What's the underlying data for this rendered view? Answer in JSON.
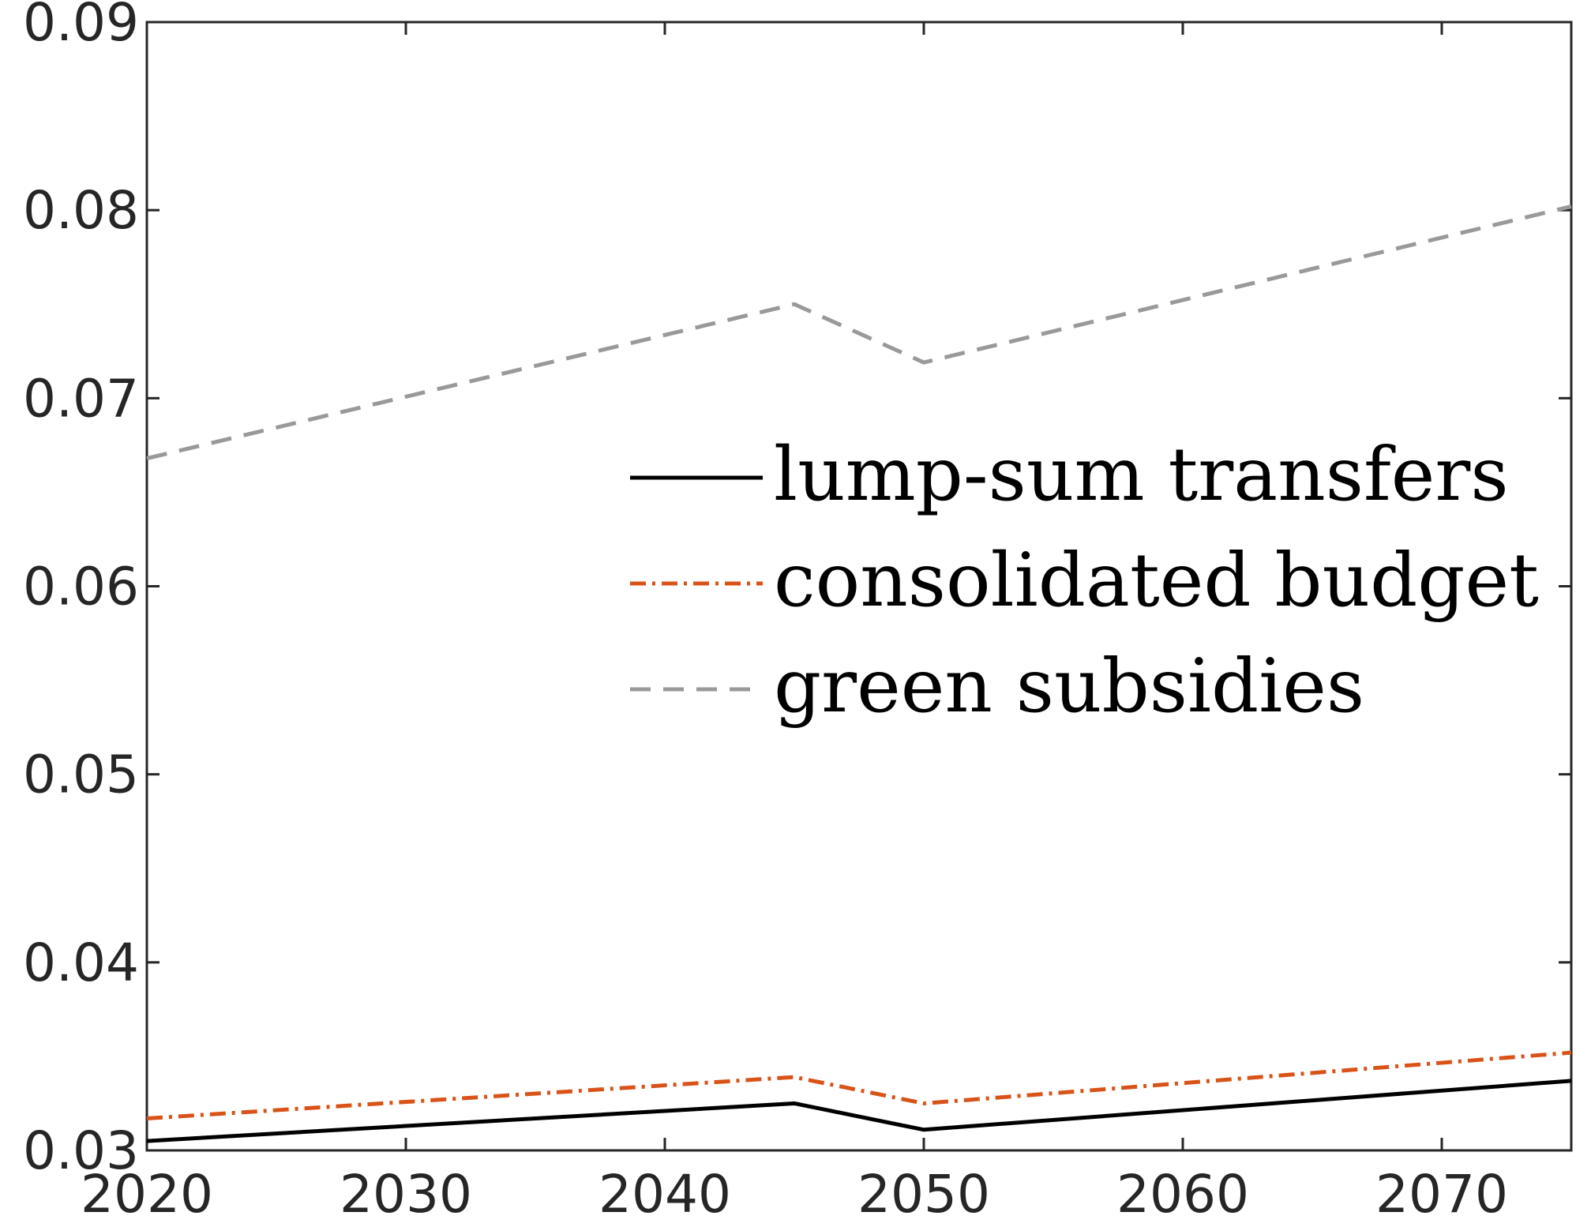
{
  "chart_data": {
    "type": "line",
    "title": "",
    "xlabel": "",
    "ylabel": "",
    "x": [
      2020,
      2045,
      2050,
      2075
    ],
    "xlim": [
      2020,
      2075
    ],
    "ylim": [
      0.03,
      0.09
    ],
    "xticks": [
      2020,
      2030,
      2040,
      2050,
      2060,
      2070
    ],
    "yticks": [
      0.03,
      0.04,
      0.05,
      0.06,
      0.07,
      0.08,
      0.09
    ],
    "xtick_labels": [
      "2020",
      "2030",
      "2040",
      "2050",
      "2060",
      "2070"
    ],
    "ytick_labels": [
      "0.03",
      "0.04",
      "0.05",
      "0.06",
      "0.07",
      "0.08",
      "0.09"
    ],
    "grid": false,
    "legend_position": "right, middle",
    "series": [
      {
        "name": "lump-sum transfers",
        "values": [
          0.0305,
          0.0325,
          0.0311,
          0.0337
        ],
        "color": "#000000",
        "style": "solid"
      },
      {
        "name": "consolidated budget",
        "values": [
          0.0317,
          0.0339,
          0.0325,
          0.0352
        ],
        "color": "#d95319",
        "style": "dash-dot"
      },
      {
        "name": "green subsidies",
        "values": [
          0.0668,
          0.075,
          0.0719,
          0.0802
        ],
        "color": "#999999",
        "style": "dashed"
      }
    ]
  }
}
